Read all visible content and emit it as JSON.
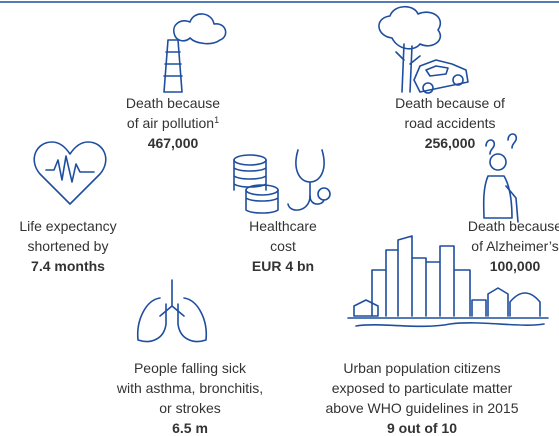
{
  "items": [
    {
      "label": [
        "Death because",
        "of air pollution"
      ],
      "note": "1",
      "value": "467,000"
    },
    {
      "label": [
        "Death because of",
        "road accidents"
      ],
      "value": "256,000"
    },
    {
      "label": [
        "Life expectancy",
        "shortened by"
      ],
      "value": "7.4 months"
    },
    {
      "label": [
        "Healthcare",
        "cost"
      ],
      "value": "EUR 4 bn"
    },
    {
      "label": [
        "Death because",
        "of Alzheimer’s"
      ],
      "value": "100,000"
    },
    {
      "label": [
        "People falling sick",
        "with asthma, bronchitis,",
        "or strokes"
      ],
      "value": "6.5 m"
    },
    {
      "label": [
        "Urban population citizens",
        "exposed to particulate matter",
        "above WHO guidelines in 2015"
      ],
      "value": "9 out of 10"
    }
  ]
}
